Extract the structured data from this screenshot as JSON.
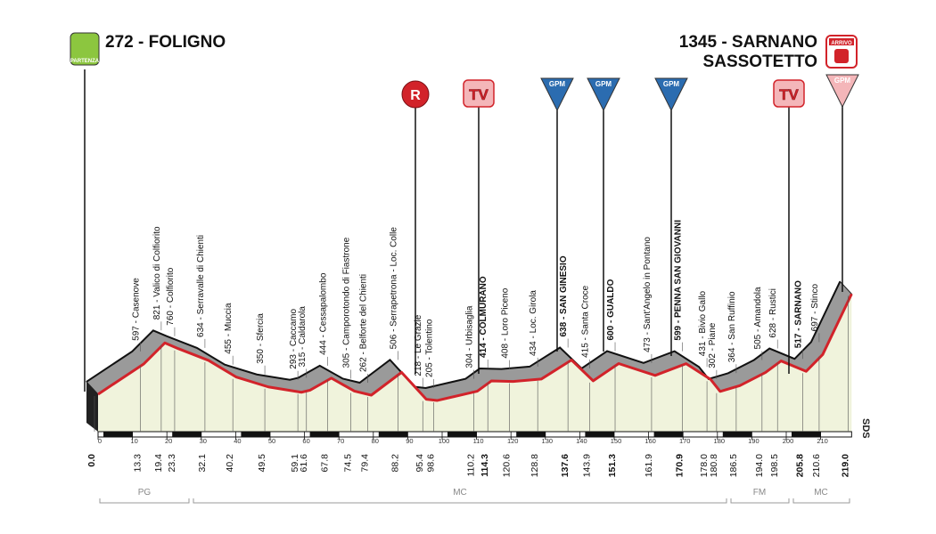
{
  "start": "272 - FOLIGNO",
  "finish": [
    "1345 - SARNANO",
    "SASSOTETTO"
  ],
  "markers": {
    "partenza": "PARTENZA",
    "arrivo": "ARRIVO",
    "r": "R",
    "tv": "TV",
    "gpm": "GPM",
    "logo": "SDS"
  },
  "waypoints": [
    {
      "km": "0.0",
      "label": "272",
      "bold": true,
      "hidden": true
    },
    {
      "km": "13.3",
      "label": "597 - Casenove",
      "bold": false
    },
    {
      "km": "19.4",
      "label": "821 - Valico di Colfiorito",
      "bold": false
    },
    {
      "km": "23.3",
      "label": "760 - Colfiorito",
      "bold": false
    },
    {
      "km": "32.1",
      "label": "634 - Serravalle di Chienti",
      "bold": false
    },
    {
      "km": "40.2",
      "label": "455 - Muccia",
      "bold": false
    },
    {
      "km": "49.5",
      "label": "350 - Sfercia",
      "bold": false
    },
    {
      "km": "59.1",
      "label": "293 - Caccamo",
      "bold": false
    },
    {
      "km": "61.6",
      "label": "315 - Caldarola",
      "bold": false
    },
    {
      "km": "67.8",
      "label": "444 - Cessapalombo",
      "bold": false
    },
    {
      "km": "74.5",
      "label": "305 - Camporotondo di Fiastrone",
      "bold": false
    },
    {
      "km": "79.4",
      "label": "262 - Belforte del Chienti",
      "bold": false
    },
    {
      "km": "88.2",
      "label": "506 - Serrapetrona - Loc. Colle",
      "bold": false
    },
    {
      "km": "95.4",
      "label": "218 - Le Grazie",
      "bold": false
    },
    {
      "km": "98.6",
      "label": "205 - Tolentino",
      "bold": false
    },
    {
      "km": "110.2",
      "label": "304 - Urbisaglia",
      "bold": false
    },
    {
      "km": "114.3",
      "label": "414 - COLMURANO",
      "bold": true
    },
    {
      "km": "120.6",
      "label": "408 - Loro Piceno",
      "bold": false
    },
    {
      "km": "128.8",
      "label": "434 - Loc. Girola",
      "bold": false
    },
    {
      "km": "137.6",
      "label": "638 - SAN GINESIO",
      "bold": true
    },
    {
      "km": "143.9",
      "label": "415 - Santa Croce",
      "bold": false
    },
    {
      "km": "151.3",
      "label": "600 - GUALDO",
      "bold": true
    },
    {
      "km": "161.9",
      "label": "473 - Sant'Angelo in Pontano",
      "bold": false
    },
    {
      "km": "170.9",
      "label": "599 - PENNA SAN GIOVANNI",
      "bold": true
    },
    {
      "km": "178.0",
      "label": "431 - Bivio Gallo",
      "bold": false
    },
    {
      "km": "180.8",
      "label": "302 - Piane",
      "bold": false
    },
    {
      "km": "186.5",
      "label": "364 - San Ruffinio",
      "bold": false
    },
    {
      "km": "194.0",
      "label": "505 - Amandola",
      "bold": false
    },
    {
      "km": "198.5",
      "label": "628 - Rustici",
      "bold": false
    },
    {
      "km": "205.8",
      "label": "517 - SARNANO",
      "bold": true
    },
    {
      "km": "210.6",
      "label": "697 - Stinco",
      "bold": false
    },
    {
      "km": "219.0",
      "label": "1345",
      "bold": true,
      "hidden": true
    }
  ],
  "km_ticks": [
    0,
    10,
    20,
    30,
    40,
    50,
    60,
    70,
    80,
    90,
    100,
    110,
    120,
    130,
    140,
    150,
    160,
    170,
    180,
    190,
    200,
    210
  ],
  "regions": [
    "PG",
    "MC",
    "FM",
    "MC"
  ]
}
